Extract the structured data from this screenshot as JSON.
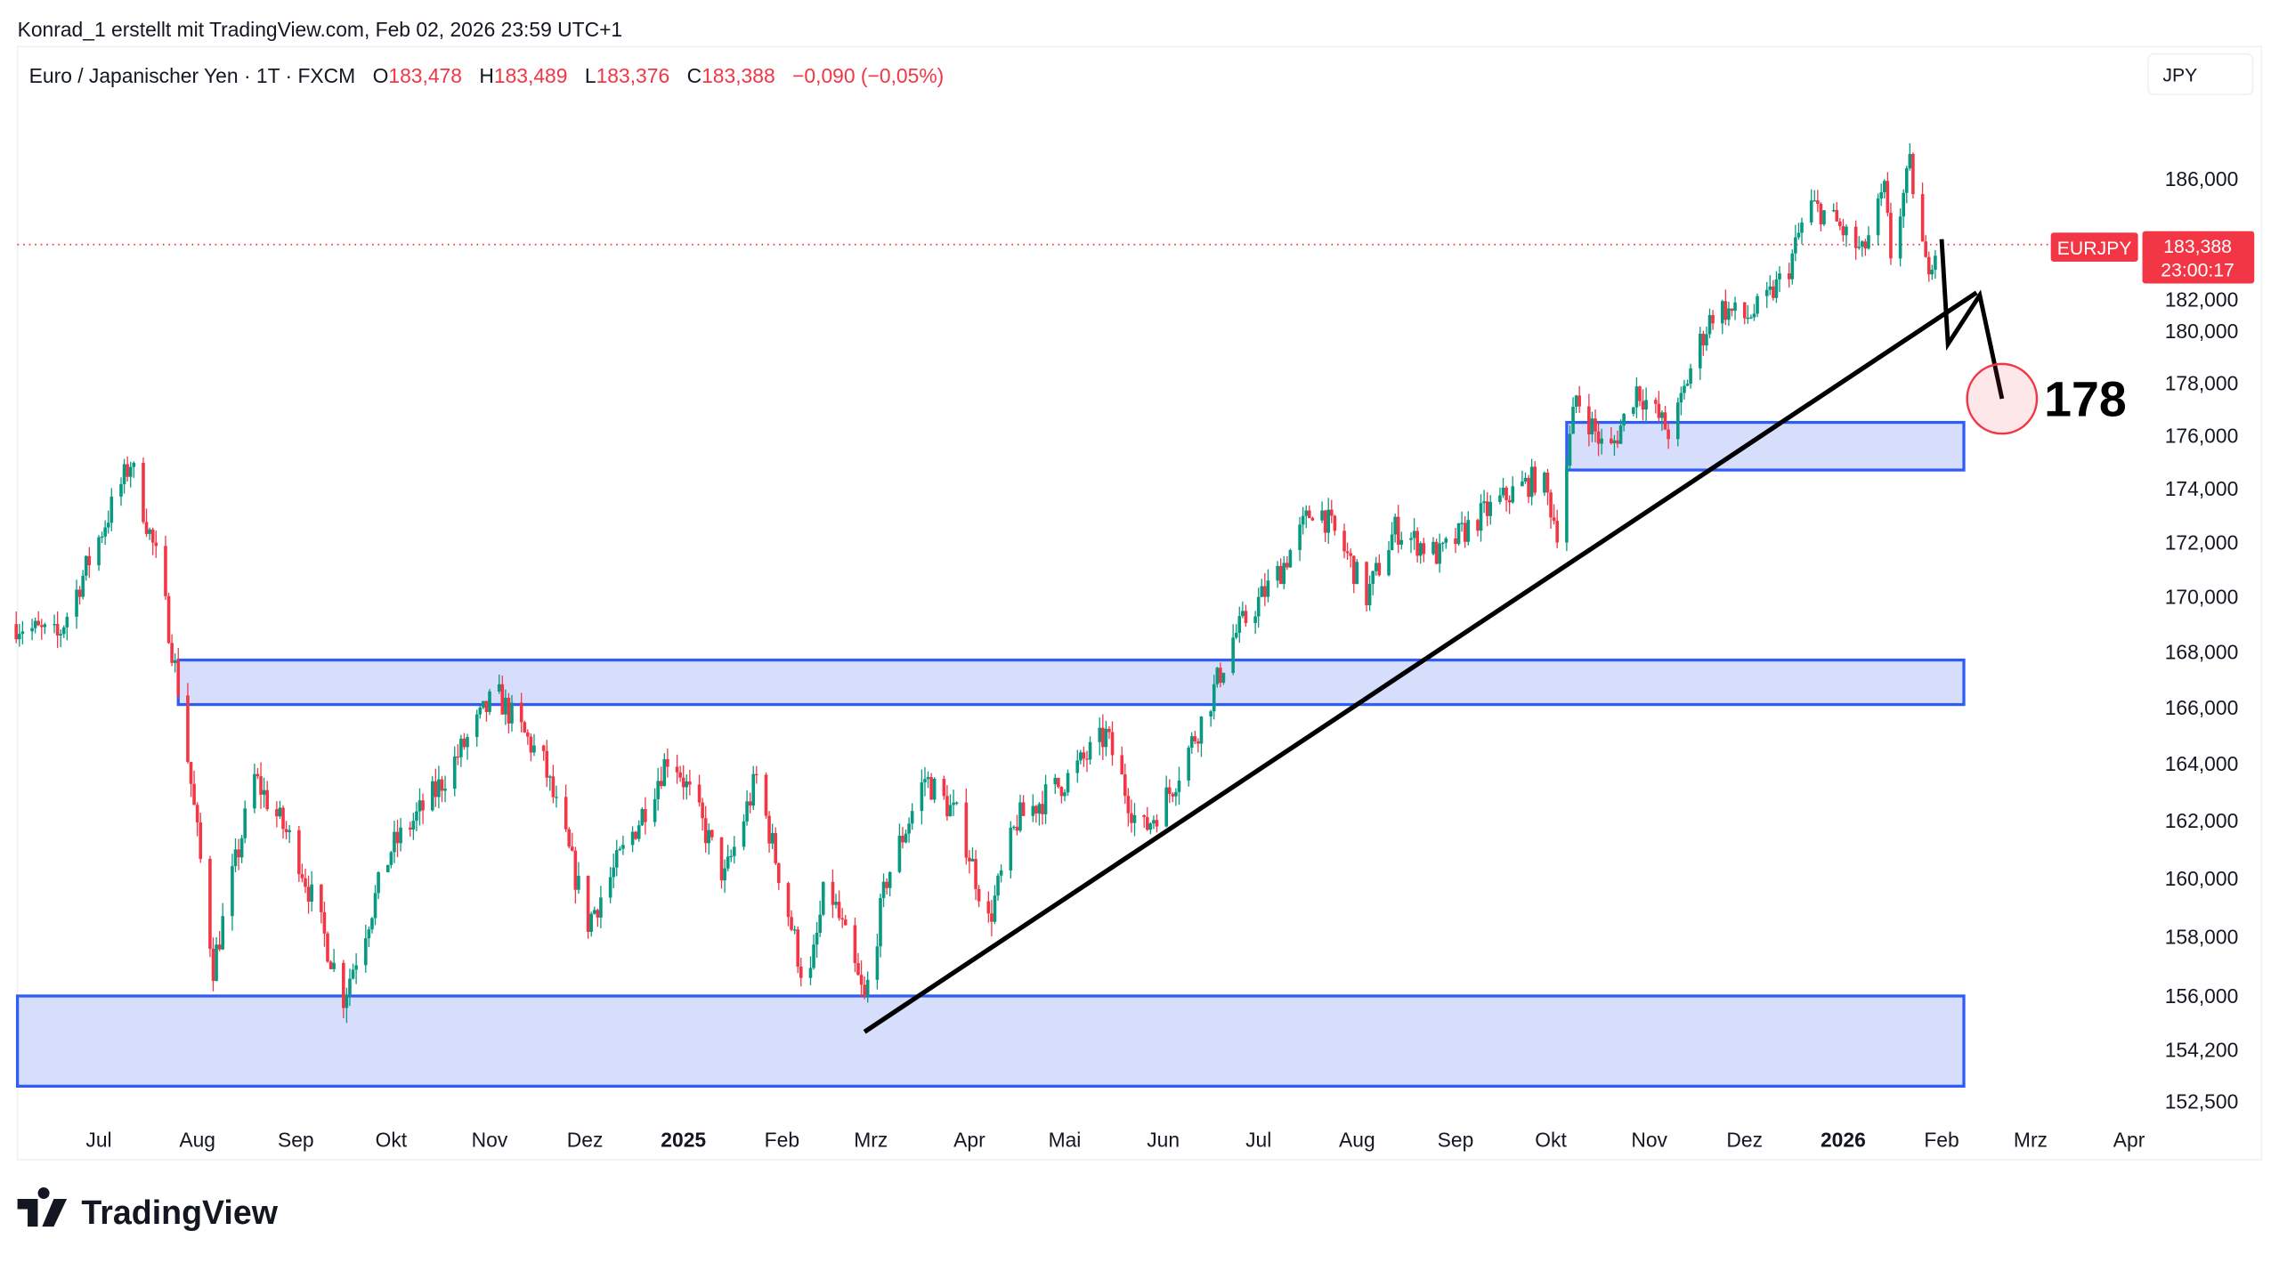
{
  "header": {
    "credit": "Konrad_1 erstellt mit TradingView.com, Feb 02, 2026 23:59 UTC+1"
  },
  "legend": {
    "symbol": "Euro / Japanischer Yen · 1T · FXCM",
    "o_label": "O",
    "o": "183,478",
    "h_label": "H",
    "h": "183,489",
    "l_label": "L",
    "l": "183,376",
    "c_label": "C",
    "c": "183,388",
    "change": "−0,090 (−0,05%)"
  },
  "currency_button": "JPY",
  "price_label": {
    "symbol": "EURJPY",
    "price": "183,388",
    "countdown": "23:00:17"
  },
  "annotation": {
    "target_text": "178"
  },
  "brand": "TradingView",
  "colors": {
    "up": "#089981",
    "down": "#f23645",
    "zone_fill": "#d6defc",
    "zone_stroke": "#2f5cf5",
    "line": "#000000"
  },
  "chart_data": {
    "type": "candlestick",
    "y_scale": "log",
    "ylim": [
      152.0,
      187.5
    ],
    "x_origin": "2024-07-01",
    "x_units": "days since origin",
    "y_ticks": [
      "186,000",
      "182,000",
      "180,000",
      "178,000",
      "176,000",
      "174,000",
      "172,000",
      "170,000",
      "168,000",
      "166,000",
      "164,000",
      "162,000",
      "160,000",
      "158,000",
      "156,000",
      "154,200",
      "152,500"
    ],
    "y_tick_values": [
      186,
      182,
      180,
      178,
      176,
      174,
      172,
      170,
      168,
      166,
      164,
      162,
      160,
      158,
      156,
      154.2,
      152.5
    ],
    "x_ticks": [
      {
        "label": "Jul",
        "date": "2024-07-01",
        "bold": false
      },
      {
        "label": "Aug",
        "date": "2024-08-01",
        "bold": false
      },
      {
        "label": "Sep",
        "date": "2024-09-01",
        "bold": false
      },
      {
        "label": "Okt",
        "date": "2024-10-01",
        "bold": false
      },
      {
        "label": "Nov",
        "date": "2024-11-01",
        "bold": false
      },
      {
        "label": "Dez",
        "date": "2024-12-01",
        "bold": false
      },
      {
        "label": "2025",
        "date": "2025-01-01",
        "bold": true
      },
      {
        "label": "Feb",
        "date": "2025-02-01",
        "bold": false
      },
      {
        "label": "Mrz",
        "date": "2025-03-01",
        "bold": false
      },
      {
        "label": "Apr",
        "date": "2025-04-01",
        "bold": false
      },
      {
        "label": "Mai",
        "date": "2025-05-01",
        "bold": false
      },
      {
        "label": "Jun",
        "date": "2025-06-01",
        "bold": false
      },
      {
        "label": "Jul",
        "date": "2025-07-01",
        "bold": false
      },
      {
        "label": "Aug",
        "date": "2025-08-01",
        "bold": false
      },
      {
        "label": "Sep",
        "date": "2025-09-01",
        "bold": false
      },
      {
        "label": "Okt",
        "date": "2025-10-01",
        "bold": false
      },
      {
        "label": "Nov",
        "date": "2025-11-01",
        "bold": false
      },
      {
        "label": "Dez",
        "date": "2025-12-01",
        "bold": false
      },
      {
        "label": "2026",
        "date": "2026-01-01",
        "bold": true
      },
      {
        "label": "Feb",
        "date": "2026-02-01",
        "bold": false
      },
      {
        "label": "Mrz",
        "date": "2026-03-01",
        "bold": false
      },
      {
        "label": "Apr",
        "date": "2026-04-01",
        "bold": false
      }
    ],
    "close_path_approx": [
      [
        -26,
        169
      ],
      [
        -13,
        168.5
      ],
      [
        10,
        175
      ],
      [
        19,
        171
      ],
      [
        26,
        166
      ],
      [
        36,
        157
      ],
      [
        49,
        163.5
      ],
      [
        62,
        161
      ],
      [
        77,
        156
      ],
      [
        92,
        161
      ],
      [
        106,
        163
      ],
      [
        125,
        166.5
      ],
      [
        140,
        164
      ],
      [
        154,
        158.5
      ],
      [
        170,
        162
      ],
      [
        180,
        164.5
      ],
      [
        197,
        160
      ],
      [
        207,
        163.5
      ],
      [
        223,
        156
      ],
      [
        229,
        160
      ],
      [
        241,
        155.8
      ],
      [
        248,
        160
      ],
      [
        260,
        163.5
      ],
      [
        271,
        162
      ],
      [
        280,
        158.5
      ],
      [
        289,
        162
      ],
      [
        305,
        163.5
      ],
      [
        317,
        165
      ],
      [
        328,
        161.5
      ],
      [
        337,
        163
      ],
      [
        349,
        166
      ],
      [
        357,
        168.5
      ],
      [
        372,
        171
      ],
      [
        383,
        173.5
      ],
      [
        393,
        171.5
      ],
      [
        399,
        170
      ],
      [
        408,
        172.5
      ],
      [
        422,
        171.5
      ],
      [
        433,
        172.8
      ],
      [
        444,
        173.8
      ],
      [
        454,
        174.5
      ],
      [
        459,
        172.5
      ],
      [
        465,
        177.5
      ],
      [
        475,
        175.2
      ],
      [
        484,
        177.8
      ],
      [
        495,
        176
      ],
      [
        502,
        179
      ],
      [
        509,
        181
      ],
      [
        518,
        180.5
      ],
      [
        524,
        181
      ],
      [
        532,
        182.5
      ],
      [
        538,
        185
      ],
      [
        545,
        184.5
      ],
      [
        555,
        183
      ],
      [
        562,
        185.5
      ],
      [
        564,
        183
      ],
      [
        570,
        186.5
      ],
      [
        575,
        182.5
      ],
      [
        579,
        183.388
      ]
    ],
    "last_price": 183.388,
    "zones": [
      {
        "from_day": -26,
        "to_day": 587,
        "low": 153.0,
        "high": 156.0
      },
      {
        "from_day": 25,
        "to_day": 587,
        "low": 166.1,
        "high": 167.7
      },
      {
        "from_day": 462,
        "to_day": 587,
        "low": 174.7,
        "high": 176.5
      }
    ],
    "trendline": [
      [
        241,
        154.8
      ],
      [
        591,
        181.5
      ]
    ],
    "projection": [
      [
        580,
        183.6
      ],
      [
        582,
        179.5
      ],
      [
        592,
        181.4
      ],
      [
        599,
        177.4
      ]
    ],
    "target": {
      "day": 599,
      "price": 177.4,
      "label": "178"
    }
  }
}
